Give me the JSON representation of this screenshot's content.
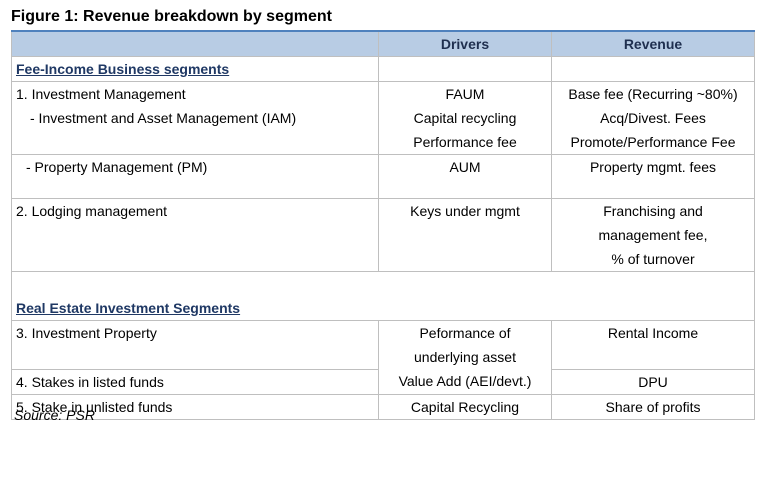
{
  "title": "Figure 1: Revenue breakdown by segment",
  "table": {
    "columns": [
      "Drivers",
      "Revenue"
    ],
    "sections": [
      {
        "title": "Fee-Income Business segments",
        "rows": [
          [
            [
              "1. Investment Management",
              "- Investment and Asset Management (IAM)"
            ],
            [
              "FAUM",
              "Capital recycling",
              "Performance fee"
            ],
            [
              "Base fee (Recurring ~80%)",
              "Acq/Divest. Fees",
              "Promote/Performance Fee"
            ]
          ],
          [
            [
              "- Property Management (PM)"
            ],
            [
              "AUM"
            ],
            [
              "Property mgmt. fees"
            ]
          ],
          [
            [
              "2. Lodging management"
            ],
            [
              "Keys under mgmt"
            ],
            [
              "Franchising and",
              "management fee,",
              "% of turnover"
            ]
          ]
        ]
      },
      {
        "title": "Real Estate Investment Segments",
        "rows": [
          [
            [
              "3. Investment Property"
            ],
            [
              "Peformance of",
              "underlying asset"
            ],
            [
              "Rental Income"
            ]
          ],
          [
            [
              "4. Stakes in listed funds"
            ],
            [
              "Value Add (AEI/devt.)"
            ],
            [
              "DPU"
            ]
          ],
          [
            [
              "5. Stake in unlisted funds"
            ],
            [
              "Capital Recycling"
            ],
            [
              "Share of profits"
            ]
          ]
        ]
      }
    ]
  },
  "source": "Source: PSR"
}
